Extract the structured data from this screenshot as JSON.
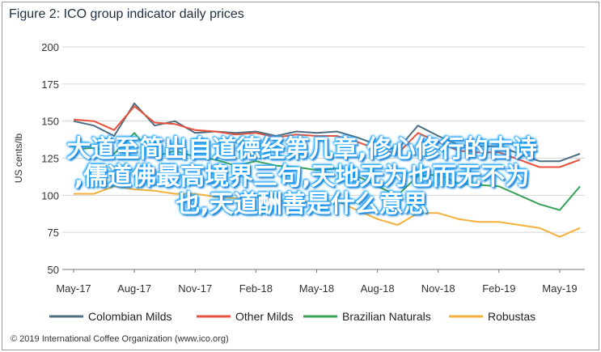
{
  "chart_data": {
    "type": "line",
    "title": "Figure 2: ICO group indicator daily prices",
    "ylabel": "US cents/lb",
    "xlabel": "",
    "ylim": [
      50,
      200
    ],
    "yticks": [
      50,
      75,
      100,
      125,
      150,
      175,
      200
    ],
    "xticks": [
      "May-17",
      "Aug-17",
      "Nov-17",
      "Feb-18",
      "May-18",
      "Aug-18",
      "Nov-18",
      "Feb-19",
      "May-19"
    ],
    "grid": "horizontal",
    "legend_position": "bottom",
    "x": [
      "May-17",
      "Jun-17",
      "Jul-17",
      "Aug-17",
      "Sep-17",
      "Oct-17",
      "Nov-17",
      "Dec-17",
      "Jan-18",
      "Feb-18",
      "Mar-18",
      "Apr-18",
      "May-18",
      "Jun-18",
      "Jul-18",
      "Aug-18",
      "Sep-18",
      "Oct-18",
      "Nov-18",
      "Dec-18",
      "Jan-19",
      "Feb-19",
      "Mar-19",
      "Apr-19",
      "May-19",
      "Jun-19"
    ],
    "series": [
      {
        "name": "Colombian Milds",
        "color": "#4e6e83",
        "values": [
          150,
          147,
          140,
          162,
          147,
          150,
          142,
          143,
          142,
          143,
          140,
          143,
          142,
          143,
          139,
          134,
          131,
          147,
          140,
          134,
          133,
          133,
          128,
          123,
          123,
          128
        ]
      },
      {
        "name": "Other Milds",
        "color": "#e8513a",
        "values": [
          151,
          150,
          144,
          160,
          149,
          148,
          144,
          143,
          141,
          142,
          139,
          141,
          140,
          140,
          136,
          131,
          128,
          142,
          136,
          130,
          129,
          129,
          124,
          119,
          119,
          124
        ]
      },
      {
        "name": "Brazilian Naturals",
        "color": "#3aa257",
        "values": [
          131,
          132,
          128,
          142,
          126,
          130,
          126,
          124,
          120,
          123,
          120,
          119,
          117,
          118,
          113,
          106,
          100,
          113,
          114,
          108,
          107,
          106,
          100,
          94,
          90,
          106
        ]
      },
      {
        "name": "Robustas",
        "color": "#f3b03a",
        "values": [
          101,
          101,
          106,
          104,
          103,
          101,
          101,
          99,
          98,
          100,
          96,
          95,
          96,
          96,
          90,
          84,
          80,
          88,
          88,
          84,
          82,
          82,
          80,
          78,
          72,
          78
        ]
      }
    ]
  },
  "legend": {
    "items": [
      {
        "label": "Colombian Milds",
        "color": "#4e6e83"
      },
      {
        "label": "Other Milds",
        "color": "#e8513a"
      },
      {
        "label": "Brazilian Naturals",
        "color": "#3aa257"
      },
      {
        "label": "Robustas",
        "color": "#f3b03a"
      }
    ]
  },
  "credit": "© 2019 International Coffee Organization (www.ico.org)",
  "overlay": {
    "line1": "大道至简出自道德经第几章,修心修行的古诗",
    "line2": ",儒道佛最高境界三句,天地无为也而无不为",
    "line3": "也,天道酬善是什么意思",
    "color": "#ffffff",
    "glow": "#1aa3ff"
  }
}
